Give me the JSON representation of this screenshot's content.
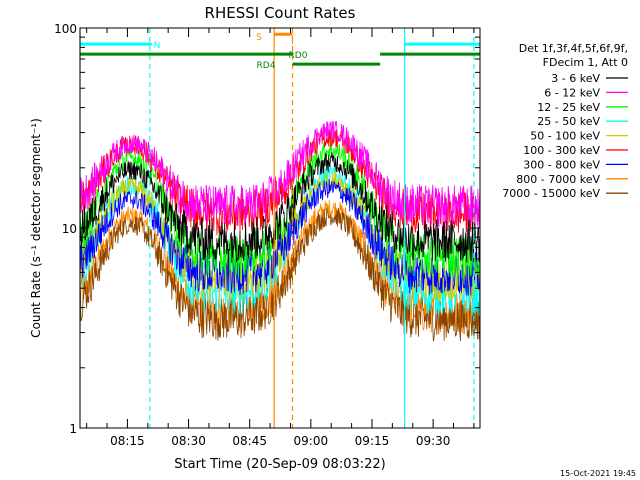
{
  "chart_data": {
    "type": "line",
    "title": "RHESSI Count Rates",
    "xlabel": "Start Time (20-Sep-09 08:03:22)",
    "ylabel": "Count Rate (s⁻¹ detector segment⁻¹)",
    "yscale": "log",
    "ylim": [
      1,
      100
    ],
    "xlim": [
      "08:03:22",
      "09:41:30"
    ],
    "x_ticks": [
      "08:15",
      "08:30",
      "08:45",
      "09:00",
      "09:15",
      "09:30"
    ],
    "y_ticks": [
      "1",
      "10",
      "100"
    ],
    "legend_title": [
      "Det 1f,3f,4f,5f,6f,9f,",
      "FDecim 1, Att 0"
    ],
    "legend_position": "right",
    "timestamp": "15-Oct-2021 19:45",
    "series": [
      {
        "name": "3 - 6 keV",
        "color": "#000000",
        "baseline": 8.6,
        "peak1": 19.5,
        "peak2": 21.5
      },
      {
        "name": "6 - 12 keV",
        "color": "#ff00ff",
        "baseline": 12.8,
        "peak1": 26.5,
        "peak2": 31.0
      },
      {
        "name": "12 - 25 keV",
        "color": "#00ff00",
        "baseline": 7.2,
        "peak1": 22.5,
        "peak2": 24.5
      },
      {
        "name": "25 - 50 keV",
        "color": "#00ffff",
        "baseline": 4.7,
        "peak1": 16.5,
        "peak2": 18.5
      },
      {
        "name": "50 - 100 keV",
        "color": "#cccc00",
        "baseline": 5.5,
        "peak1": 16.0,
        "peak2": 17.5
      },
      {
        "name": "100 - 300 keV",
        "color": "#ff0000",
        "baseline": 11.8,
        "peak1": 26.0,
        "peak2": 28.5
      },
      {
        "name": "300 - 800 keV",
        "color": "#0000ff",
        "baseline": 5.9,
        "peak1": 14.0,
        "peak2": 15.8
      },
      {
        "name": "800 - 7000 keV",
        "color": "#ff8800",
        "baseline": 3.8,
        "peak1": 11.5,
        "peak2": 12.5
      },
      {
        "name": "7000 - 15000 keV",
        "color": "#884400",
        "baseline": 3.5,
        "peak1": 10.5,
        "peak2": 11.5
      }
    ],
    "flare_peaks": [
      "08:16",
      "09:05"
    ],
    "orbit_bars": [
      {
        "label": "N",
        "color": "#00ffff",
        "segments": [
          [
            "08:03:22",
            "08:21"
          ],
          [
            "09:23",
            "09:41:30"
          ]
        ],
        "level": 83
      },
      {
        "label": "S",
        "color": "#ff8800",
        "segments": [
          [
            "08:51",
            "08:55:30"
          ]
        ],
        "level": 93
      },
      {
        "label": "RD0",
        "color": "#008800",
        "segments": [
          [
            "08:55:30",
            "09:17"
          ]
        ],
        "level": 66
      },
      {
        "label": "RD4",
        "color": "#008800",
        "segments": [
          [
            "08:03:22",
            "08:55:30"
          ],
          [
            "09:17",
            "09:41:30"
          ]
        ],
        "level": 74
      }
    ],
    "vlines": [
      {
        "time": "08:03:22",
        "color": "#00ffff",
        "style": "solid"
      },
      {
        "time": "08:20:30",
        "color": "#00ffff",
        "style": "dashed"
      },
      {
        "time": "08:51",
        "color": "#ff8800",
        "style": "solid"
      },
      {
        "time": "08:55:30",
        "color": "#ff8800",
        "style": "dashed"
      },
      {
        "time": "09:23",
        "color": "#00ffff",
        "style": "solid"
      },
      {
        "time": "09:40",
        "color": "#00ffff",
        "style": "dashed"
      }
    ]
  }
}
